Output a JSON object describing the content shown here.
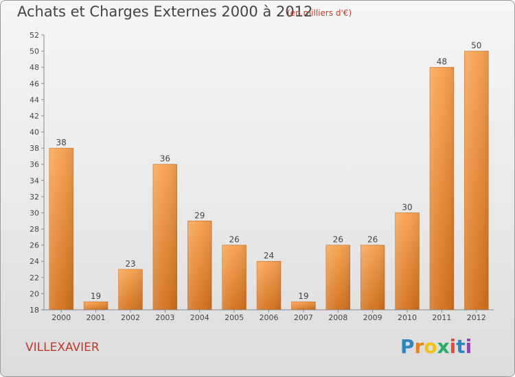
{
  "header": {
    "title": "Achats et Charges Externes 2000 à 2012",
    "subtitle": "(en milliers d'€)"
  },
  "footer": {
    "place": "VILLEXAVIER",
    "logo_letters": [
      "P",
      "r",
      "o",
      "x",
      "i",
      "t",
      "i"
    ],
    "logo_colors": [
      "#2e86c1",
      "#e67e22",
      "#f1c40f",
      "#27ae60",
      "#e74c3c",
      "#2e86c1",
      "#8e44ad"
    ]
  },
  "colors": {
    "bar_top": "#f7a24f",
    "bar_bottom": "#d2701c",
    "bar_edge": "#c86414",
    "axis": "#888888",
    "text": "#444444"
  },
  "chart_data": {
    "type": "bar",
    "title": "Achats et Charges Externes 2000 à 2012",
    "subtitle": "(en milliers d'€)",
    "xlabel": "",
    "ylabel": "",
    "categories": [
      "2000",
      "2001",
      "2002",
      "2003",
      "2004",
      "2005",
      "2006",
      "2007",
      "2008",
      "2009",
      "2010",
      "2011",
      "2012"
    ],
    "values": [
      38,
      19,
      23,
      36,
      29,
      26,
      24,
      19,
      26,
      26,
      30,
      48,
      50
    ],
    "ylim": [
      18,
      52
    ],
    "yticks": [
      18,
      20,
      22,
      24,
      26,
      28,
      30,
      32,
      34,
      36,
      38,
      40,
      42,
      44,
      46,
      48,
      50,
      52
    ],
    "grid": false,
    "legend": "none"
  }
}
